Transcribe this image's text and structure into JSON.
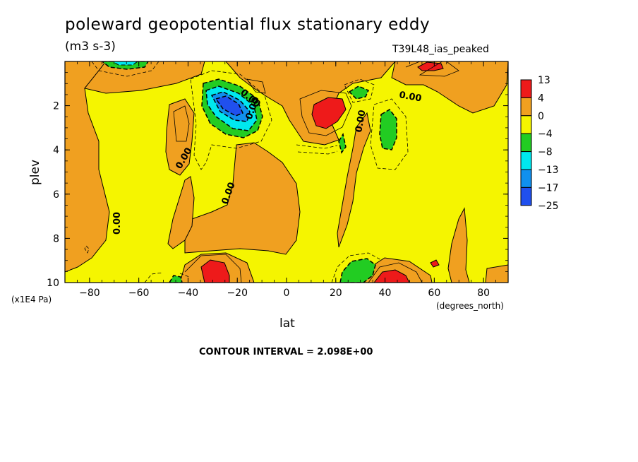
{
  "header": {
    "title": "poleward geopotential flux stationary eddy",
    "units": "(m3 s-3)",
    "run": "T39L48_ias_peaked"
  },
  "chart_data": {
    "type": "heatmap",
    "title": "poleward geopotential flux stationary eddy",
    "units": "(m3 s-3)",
    "xlabel": "lat",
    "ylabel": "plev",
    "x_units": "(degrees_north)",
    "y_units": "(x1E4 Pa)",
    "xlim": [
      -90,
      90
    ],
    "ylim": [
      10,
      0
    ],
    "x_ticks": [
      -80,
      -60,
      -40,
      -20,
      0,
      20,
      40,
      60,
      80
    ],
    "x_tick_labels": [
      "−80",
      "−60",
      "−40",
      "−20",
      "0",
      "20",
      "40",
      "60",
      "80"
    ],
    "y_ticks": [
      2,
      4,
      6,
      8,
      10
    ],
    "y_tick_labels": [
      "2",
      "4",
      "6",
      "8",
      "10"
    ],
    "contour_labels": [
      "0.00",
      "0.00",
      "0.00",
      "0.00",
      "0.00",
      "0.00",
      "0.00"
    ],
    "colorbar": {
      "labels": [
        "13",
        "4",
        "0",
        "−4",
        "−8",
        "−13",
        "−17",
        "−25"
      ],
      "colors": [
        "#ee1a1a",
        "#f0a020",
        "#f5f500",
        "#22cc22",
        "#00e8ee",
        "#1090ee",
        "#2050ee"
      ]
    },
    "contour_interval_text": "CONTOUR INTERVAL = 2.098E+00",
    "levels": [
      13,
      4,
      0,
      -4,
      -8,
      -13,
      -17,
      -25
    ],
    "grid": false,
    "legend_position": "right"
  }
}
